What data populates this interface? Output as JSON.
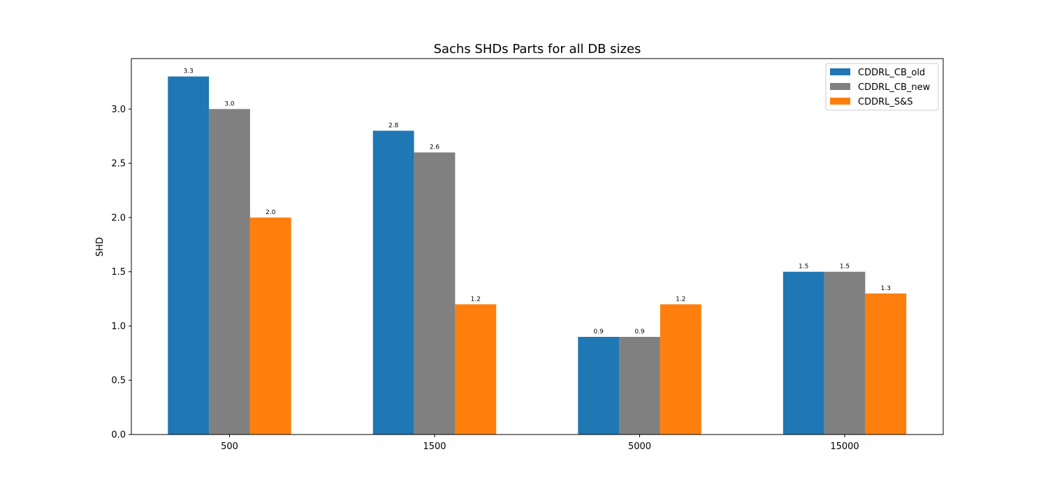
{
  "chart_data": {
    "type": "bar",
    "title": "Sachs SHDs Parts for all DB sizes",
    "xlabel": "",
    "ylabel": "SHD",
    "categories": [
      "500",
      "1500",
      "5000",
      "15000"
    ],
    "series": [
      {
        "name": "CDDRL_CB_old",
        "color": "#1f77b4",
        "values": [
          3.3,
          2.8,
          0.9,
          1.5
        ],
        "labels": [
          "3.3",
          "2.8",
          "0.9",
          "1.5"
        ]
      },
      {
        "name": "CDDRL_CB_new",
        "color": "#808080",
        "values": [
          3.0,
          2.6,
          0.9,
          1.5
        ],
        "labels": [
          "3.0",
          "2.6",
          "0.9",
          "1.5"
        ]
      },
      {
        "name": "CDDRL_S&S",
        "color": "#ff7f0e",
        "values": [
          2.0,
          1.2,
          1.2,
          1.3
        ],
        "labels": [
          "2.0",
          "1.2",
          "1.2",
          "1.3"
        ]
      }
    ],
    "ylim": [
      0,
      3.465
    ],
    "yticks": [
      "0.0",
      "0.5",
      "1.0",
      "1.5",
      "2.0",
      "2.5",
      "3.0"
    ],
    "grid": false,
    "legend": "top-right"
  }
}
